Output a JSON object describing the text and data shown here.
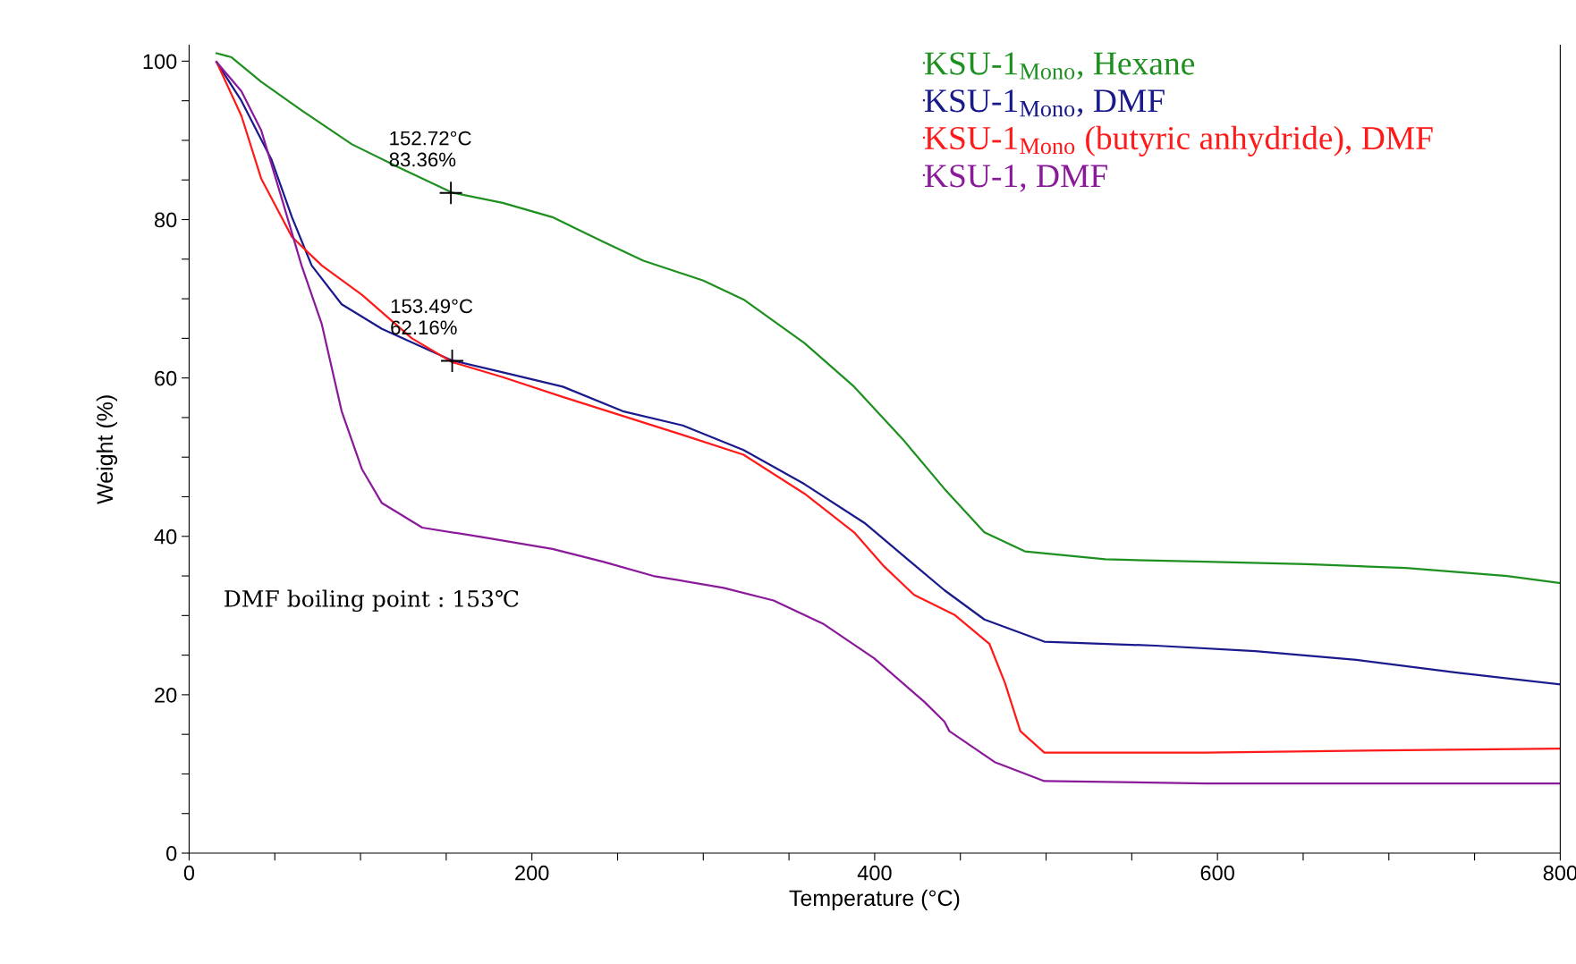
{
  "chart_data": {
    "type": "line",
    "xlabel": "Temperature (°C)",
    "ylabel": "Weight (%)",
    "xlim": [
      0,
      800
    ],
    "ylim": [
      0,
      102
    ],
    "xticks": [
      0,
      {
        "value": 50,
        "label": null
      },
      {
        "value": 100,
        "label": null
      },
      {
        "value": 150,
        "label": null
      },
      200,
      {
        "value": 250,
        "label": null
      },
      {
        "value": 300,
        "label": null
      },
      {
        "value": 350,
        "label": null
      },
      400,
      {
        "value": 450,
        "label": null
      },
      {
        "value": 500,
        "label": null
      },
      {
        "value": 550,
        "label": null
      },
      600,
      {
        "value": 650,
        "label": null
      },
      {
        "value": 700,
        "label": null
      },
      {
        "value": 750,
        "label": null
      },
      800
    ],
    "yticks": [
      0,
      {
        "value": 5,
        "label": null
      },
      {
        "value": 10,
        "label": null
      },
      {
        "value": 15,
        "label": null
      },
      20,
      {
        "value": 25,
        "label": null
      },
      {
        "value": 30,
        "label": null
      },
      {
        "value": 35,
        "label": null
      },
      40,
      {
        "value": 45,
        "label": null
      },
      {
        "value": 50,
        "label": null
      },
      {
        "value": 55,
        "label": null
      },
      60,
      {
        "value": 65,
        "label": null
      },
      {
        "value": 70,
        "label": null
      },
      {
        "value": 75,
        "label": null
      },
      80,
      {
        "value": 85,
        "label": null
      },
      {
        "value": 90,
        "label": null
      },
      {
        "value": 95,
        "label": null
      },
      100
    ],
    "grid": false,
    "legend": "top right",
    "marker": "none",
    "line_style": "solid",
    "series": [
      {
        "name": "KSU-1$_{Mono}$, Hexane",
        "color": "#1e9020",
        "x": [
          16,
          24.6,
          42,
          65.6,
          95,
          124,
          153.6,
          183,
          212,
          241.5,
          265,
          300,
          323.5,
          359,
          388,
          417,
          440.7,
          464,
          487.6,
          534.5,
          593,
          652,
          710,
          769,
          800
        ],
        "values": [
          101,
          100.5,
          97.4,
          93.8,
          89.5,
          86.4,
          83.4,
          82.1,
          80.3,
          77.2,
          74.8,
          72.3,
          69.9,
          64.4,
          58.9,
          52.1,
          46,
          40.5,
          38.1,
          37.1,
          36.8,
          36.5,
          36,
          35,
          34.1
        ]
      },
      {
        "name": "KSU-1$_{Mono}$, DMF",
        "color": "#1a1a8c",
        "x": [
          16,
          30.5,
          48,
          60,
          71.5,
          89,
          112.5,
          153.5,
          183,
          218,
          253,
          288,
          323.5,
          359,
          394,
          417,
          440.7,
          464,
          499,
          564,
          622,
          681,
          739.5,
          800
        ],
        "values": [
          99.9,
          95,
          87.6,
          80.3,
          74.2,
          69.3,
          66.2,
          62.2,
          60.7,
          58.9,
          55.8,
          54,
          50.9,
          46.6,
          41.7,
          37.5,
          33.2,
          29.5,
          26.7,
          26.2,
          25.5,
          24.4,
          22.8,
          21.3
        ]
      },
      {
        "name": "KSU-1$_{Mono}$ (butyric anhydride), DMF",
        "color": "#ff1a1a",
        "x": [
          16,
          30.5,
          42,
          60,
          77.4,
          100.8,
          130,
          153.5,
          183,
          218,
          253,
          288,
          323.5,
          359,
          388,
          405.5,
          423,
          446.5,
          467,
          476,
          485,
          499,
          593,
          710,
          800
        ],
        "values": [
          99.9,
          93.1,
          85.2,
          77.8,
          74.2,
          70.5,
          65,
          62,
          60.1,
          57.6,
          55.2,
          52.8,
          50.3,
          45.4,
          40.5,
          36.2,
          32.6,
          30.1,
          26.4,
          21.5,
          15.4,
          12.7,
          12.7,
          13,
          13.2
        ]
      },
      {
        "name": "KSU-1, DMF",
        "color": "#8b1a9b",
        "x": [
          16,
          30.5,
          42,
          54,
          65.6,
          77.4,
          89,
          100.8,
          112.5,
          136,
          171,
          212,
          241.5,
          270.8,
          311.8,
          341,
          370.4,
          399.7,
          429,
          440.7,
          443.6,
          470,
          499,
          593,
          800
        ],
        "values": [
          99.9,
          96.2,
          91.3,
          82.7,
          74.2,
          66.8,
          55.8,
          48.5,
          44.2,
          41.1,
          39.9,
          38.4,
          36.8,
          35,
          33.5,
          31.9,
          28.9,
          24.6,
          19.1,
          16.6,
          15.4,
          11.5,
          9.1,
          8.8,
          8.8
        ]
      }
    ],
    "annotations": [
      {
        "text": "152.72°C\n83.36%",
        "x": 152.72,
        "y": 83.36
      },
      {
        "text": "153.49°C\n62.16%",
        "x": 153.49,
        "y": 62.16
      },
      "DMF boiling point : 153℃"
    ]
  }
}
